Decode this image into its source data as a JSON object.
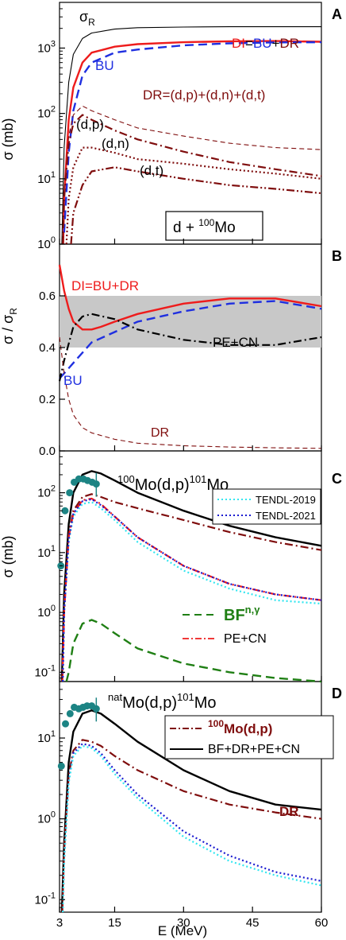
{
  "colors": {
    "black": "#000000",
    "red": "#ee1c1c",
    "blue": "#1f2fe0",
    "darkred": "#7f0d0d",
    "cyan": "#33e6f0",
    "navy": "#1b1bd0",
    "green": "#1f7f14",
    "teal": "#1c8484",
    "band": "#c8c8c8"
  },
  "xaxis": {
    "label": "E (MeV)",
    "range": [
      3,
      60
    ],
    "ticks": [
      3,
      15,
      30,
      45,
      60
    ],
    "tick_labels": [
      "3",
      "15",
      "30",
      "45",
      "60"
    ]
  },
  "chart_data": [
    {
      "panel": "A",
      "type": "line",
      "yscale": "log",
      "ylim": [
        1,
        5000
      ],
      "ylabel": "σ (mb)",
      "yticks": [
        1,
        10,
        100,
        1000
      ],
      "ytick_labels": [
        "10^0",
        "10^1",
        "10^2",
        "10^3"
      ],
      "legend_box": {
        "main": "d + ",
        "sup": "100",
        "tail": "Mo"
      },
      "annotations": [
        {
          "key": "sigmaR",
          "text": "σ",
          "sub": "R",
          "color": "black"
        },
        {
          "key": "bu",
          "text": "BU",
          "color": "blue"
        },
        {
          "key": "dr",
          "text": "DR=(d,p)+(d,n)+(d,t)",
          "color": "darkred"
        },
        {
          "key": "dp",
          "text": "(d,p)",
          "color": "black"
        },
        {
          "key": "dn",
          "text": "(d,n)",
          "color": "black"
        },
        {
          "key": "dt",
          "text": "(d,t)",
          "color": "black"
        }
      ],
      "di_label": [
        {
          "text": "DI",
          "color": "red"
        },
        {
          "text": "=",
          "color": "black"
        },
        {
          "text": "BU",
          "color": "blue"
        },
        {
          "text": "+",
          "color": "black"
        },
        {
          "text": "DR",
          "color": "darkred"
        }
      ],
      "series": [
        {
          "key": "sigmaR",
          "style": "thin",
          "color": "black",
          "x": [
            3.5,
            4,
            5,
            6,
            8,
            10,
            15,
            20,
            30,
            40,
            50,
            60
          ],
          "y": [
            1,
            30,
            300,
            800,
            1400,
            1700,
            1950,
            2050,
            2100,
            2120,
            2120,
            2120
          ]
        },
        {
          "key": "DI",
          "style": "solid",
          "color": "red",
          "x": [
            3.8,
            4,
            5,
            6,
            8,
            10,
            15,
            20,
            30,
            40,
            50,
            60
          ],
          "y": [
            1,
            5,
            80,
            250,
            600,
            850,
            1050,
            1150,
            1230,
            1270,
            1280,
            1250
          ]
        },
        {
          "key": "BU",
          "style": "dash",
          "color": "blue",
          "x": [
            4,
            5,
            6,
            8,
            10,
            15,
            20,
            30,
            40,
            50,
            60
          ],
          "y": [
            1.5,
            25,
            110,
            380,
            600,
            850,
            950,
            1100,
            1180,
            1220,
            1230
          ]
        },
        {
          "key": "DR",
          "style": "thin-dash",
          "color": "darkred",
          "x": [
            3.8,
            4,
            5,
            6,
            8,
            10,
            15,
            20,
            30,
            40,
            50,
            60
          ],
          "y": [
            1,
            6,
            45,
            95,
            130,
            110,
            80,
            60,
            45,
            35,
            30,
            28
          ]
        },
        {
          "key": "dp",
          "style": "dashdot",
          "color": "darkred",
          "x": [
            3.7,
            4,
            5,
            6,
            8,
            10,
            15,
            20,
            30,
            40,
            50,
            60
          ],
          "y": [
            1,
            5,
            35,
            70,
            95,
            80,
            55,
            40,
            26,
            18,
            14,
            11
          ]
        },
        {
          "key": "dn",
          "style": "dot",
          "color": "darkred",
          "x": [
            4.5,
            5,
            6,
            8,
            10,
            15,
            20,
            30,
            40,
            50,
            60
          ],
          "y": [
            1,
            5,
            15,
            30,
            30,
            25,
            20,
            17,
            14,
            12,
            10
          ]
        },
        {
          "key": "dt",
          "style": "dashdotdot",
          "color": "darkred",
          "x": [
            5.5,
            6,
            8,
            10,
            15,
            20,
            30,
            40,
            50,
            60
          ],
          "y": [
            1,
            3,
            8,
            13,
            15,
            13,
            10,
            8,
            7,
            6
          ]
        }
      ]
    },
    {
      "panel": "B",
      "type": "line",
      "yscale": "linear",
      "ylim": [
        0,
        0.8
      ],
      "ylabel_main": "σ / σ",
      "ylabel_sub": "R",
      "yticks": [
        0,
        0.2,
        0.4,
        0.6
      ],
      "ytick_labels": [
        "0.0",
        "0.2",
        "0.4",
        "0.6"
      ],
      "band": [
        0.4,
        0.6
      ],
      "annotations": [
        {
          "key": "di",
          "text": "DI=BU+DR",
          "color": "red"
        },
        {
          "key": "pecn",
          "text": "PE+CN",
          "color": "black"
        },
        {
          "key": "bu",
          "text": "BU",
          "color": "blue"
        },
        {
          "key": "dr",
          "text": "DR",
          "color": "darkred"
        }
      ],
      "series": [
        {
          "key": "DI",
          "style": "solid",
          "color": "red",
          "x": [
            3,
            4,
            5,
            6,
            8,
            10,
            12,
            15,
            20,
            30,
            40,
            50,
            60
          ],
          "y": [
            0.72,
            0.62,
            0.55,
            0.5,
            0.47,
            0.47,
            0.48,
            0.5,
            0.53,
            0.57,
            0.59,
            0.59,
            0.56
          ]
        },
        {
          "key": "BU",
          "style": "dash",
          "color": "blue",
          "x": [
            3,
            5,
            8,
            10,
            15,
            20,
            30,
            40,
            50,
            60
          ],
          "y": [
            0.28,
            0.32,
            0.38,
            0.42,
            0.46,
            0.5,
            0.54,
            0.57,
            0.58,
            0.55
          ]
        },
        {
          "key": "PECN",
          "style": "dashdot",
          "color": "black",
          "x": [
            3,
            4,
            6,
            8,
            10,
            15,
            20,
            30,
            40,
            50,
            60
          ],
          "y": [
            0.27,
            0.35,
            0.48,
            0.52,
            0.53,
            0.51,
            0.47,
            0.43,
            0.41,
            0.41,
            0.44
          ]
        },
        {
          "key": "DR",
          "style": "thin-dash",
          "color": "darkred",
          "x": [
            3,
            4,
            5,
            6,
            8,
            10,
            15,
            20,
            30,
            40,
            50,
            60
          ],
          "y": [
            0.44,
            0.3,
            0.2,
            0.14,
            0.09,
            0.07,
            0.045,
            0.03,
            0.02,
            0.015,
            0.012,
            0.01
          ]
        }
      ]
    },
    {
      "panel": "C",
      "type": "line",
      "yscale": "log",
      "ylim": [
        0.07,
        500
      ],
      "yticks": [
        0.1,
        1,
        10,
        100
      ],
      "ytick_labels": [
        "10^-1",
        "10^0",
        "10^1",
        "10^2"
      ],
      "title": {
        "pre": "",
        "sup1": "100",
        "mid": "Mo(d,p)",
        "sup2": "101",
        "tail": "Mo"
      },
      "legend_top": [
        {
          "text": "TENDL-2019",
          "color": "cyan",
          "style": "dot"
        },
        {
          "text": "TENDL-2021",
          "color": "navy",
          "style": "dot"
        }
      ],
      "legend_mid": [
        {
          "key": "bf",
          "text": "BF",
          "sup": "n,γ",
          "color": "green",
          "style": "dash"
        },
        {
          "key": "pecn",
          "text": "PE+CN",
          "color": "red",
          "style": "dashdot"
        }
      ],
      "exp": {
        "x": [
          3.3,
          4.2,
          5.2,
          6.2,
          7.2,
          8.2,
          9.1,
          10.1,
          11.0
        ],
        "y": [
          6,
          50,
          100,
          150,
          170,
          170,
          160,
          150,
          140
        ]
      },
      "series": [
        {
          "key": "total",
          "style": "solid",
          "color": "black",
          "x": [
            3.5,
            4,
            5,
            6,
            8,
            10,
            12,
            15,
            20,
            30,
            40,
            50,
            60
          ],
          "y": [
            0.07,
            2,
            30,
            100,
            200,
            230,
            210,
            160,
            100,
            50,
            28,
            18,
            13
          ]
        },
        {
          "key": "DR",
          "style": "dashdot",
          "color": "darkred",
          "x": [
            3.6,
            4,
            5,
            6,
            8,
            10,
            12,
            15,
            20,
            30,
            40,
            50,
            60
          ],
          "y": [
            0.07,
            1,
            20,
            50,
            85,
            95,
            85,
            70,
            55,
            35,
            22,
            15,
            11
          ]
        },
        {
          "key": "PECN",
          "style": "dashdot",
          "color": "red",
          "x": [
            3.6,
            4,
            5,
            6,
            8,
            10,
            12,
            15,
            20,
            30,
            40,
            50,
            60
          ],
          "y": [
            0.07,
            1,
            18,
            45,
            75,
            80,
            65,
            40,
            18,
            6,
            3,
            2,
            1.6
          ]
        },
        {
          "key": "T2019",
          "style": "dot",
          "color": "cyan",
          "x": [
            3.7,
            4,
            5,
            6,
            8,
            10,
            12,
            15,
            20,
            30,
            40,
            50,
            60
          ],
          "y": [
            0.07,
            1,
            15,
            40,
            65,
            70,
            55,
            35,
            15,
            5,
            2.5,
            1.6,
            1.4
          ]
        },
        {
          "key": "T2021",
          "style": "dot",
          "color": "navy",
          "x": [
            3.7,
            4,
            5,
            6,
            8,
            10,
            12,
            15,
            20,
            30,
            40,
            50,
            60
          ],
          "y": [
            0.07,
            1,
            17,
            45,
            72,
            78,
            62,
            40,
            18,
            6,
            3,
            2,
            1.6
          ]
        },
        {
          "key": "BF",
          "style": "dash",
          "color": "green",
          "x": [
            4.5,
            5,
            6,
            8,
            10,
            12,
            15,
            20,
            30,
            40,
            50,
            60
          ],
          "y": [
            0.07,
            0.1,
            0.3,
            0.65,
            0.75,
            0.65,
            0.45,
            0.25,
            0.14,
            0.1,
            0.08,
            0.07
          ]
        }
      ]
    },
    {
      "panel": "D",
      "type": "line",
      "yscale": "log",
      "ylim": [
        0.07,
        50
      ],
      "ylabel": "σ (mb)",
      "yticks": [
        0.1,
        1,
        10
      ],
      "ytick_labels": [
        "10^-1",
        "10^0",
        "10^1"
      ],
      "title": {
        "pre": "nat",
        "mid": "Mo(d,p)",
        "sup2": "101",
        "tail": "Mo"
      },
      "legend": [
        {
          "key": "mo100",
          "sup": "100",
          "text": "Mo(d,p)",
          "color": "darkred",
          "style": "dashdot"
        },
        {
          "key": "total",
          "text": "BF+DR+PE+CN",
          "color": "black",
          "style": "solid"
        }
      ],
      "dr_label": "DR",
      "exp": {
        "x": [
          3.4,
          4.3,
          5.3,
          6.2,
          7.2,
          8.1,
          9.0,
          10.0,
          11.0
        ],
        "y": [
          4.5,
          15,
          20,
          24,
          23,
          24,
          25,
          25,
          23
        ]
      },
      "series": [
        {
          "key": "total",
          "style": "solid",
          "color": "black",
          "x": [
            3.5,
            4,
            5,
            6,
            8,
            10,
            12,
            15,
            20,
            30,
            40,
            50,
            60
          ],
          "y": [
            0.07,
            0.5,
            5,
            12,
            20,
            22,
            20,
            15,
            9,
            4,
            2.2,
            1.5,
            1.3
          ]
        },
        {
          "key": "mo100",
          "style": "dashdot",
          "color": "darkred",
          "x": [
            3.6,
            4,
            5,
            6,
            8,
            10,
            12,
            15,
            20,
            30,
            40,
            50,
            60
          ],
          "y": [
            0.07,
            0.4,
            3.5,
            7,
            9.5,
            9,
            8,
            6,
            4,
            2.2,
            1.5,
            1.2,
            1
          ]
        },
        {
          "key": "T2021",
          "style": "dot",
          "color": "navy",
          "x": [
            3.7,
            4,
            5,
            6,
            8,
            10,
            12,
            15,
            20,
            30,
            40,
            50,
            60
          ],
          "y": [
            0.07,
            0.3,
            3,
            6.5,
            8.5,
            8,
            6.5,
            4,
            2,
            0.7,
            0.35,
            0.22,
            0.17
          ]
        },
        {
          "key": "T2019",
          "style": "dot",
          "color": "cyan",
          "x": [
            3.7,
            4,
            5,
            6,
            8,
            10,
            12,
            15,
            20,
            30,
            40,
            50,
            60
          ],
          "y": [
            0.07,
            0.3,
            2.8,
            6,
            8,
            7.5,
            6,
            3.6,
            1.8,
            0.6,
            0.3,
            0.2,
            0.15
          ]
        }
      ]
    }
  ],
  "panel_letters": [
    "A",
    "B",
    "C",
    "D"
  ]
}
